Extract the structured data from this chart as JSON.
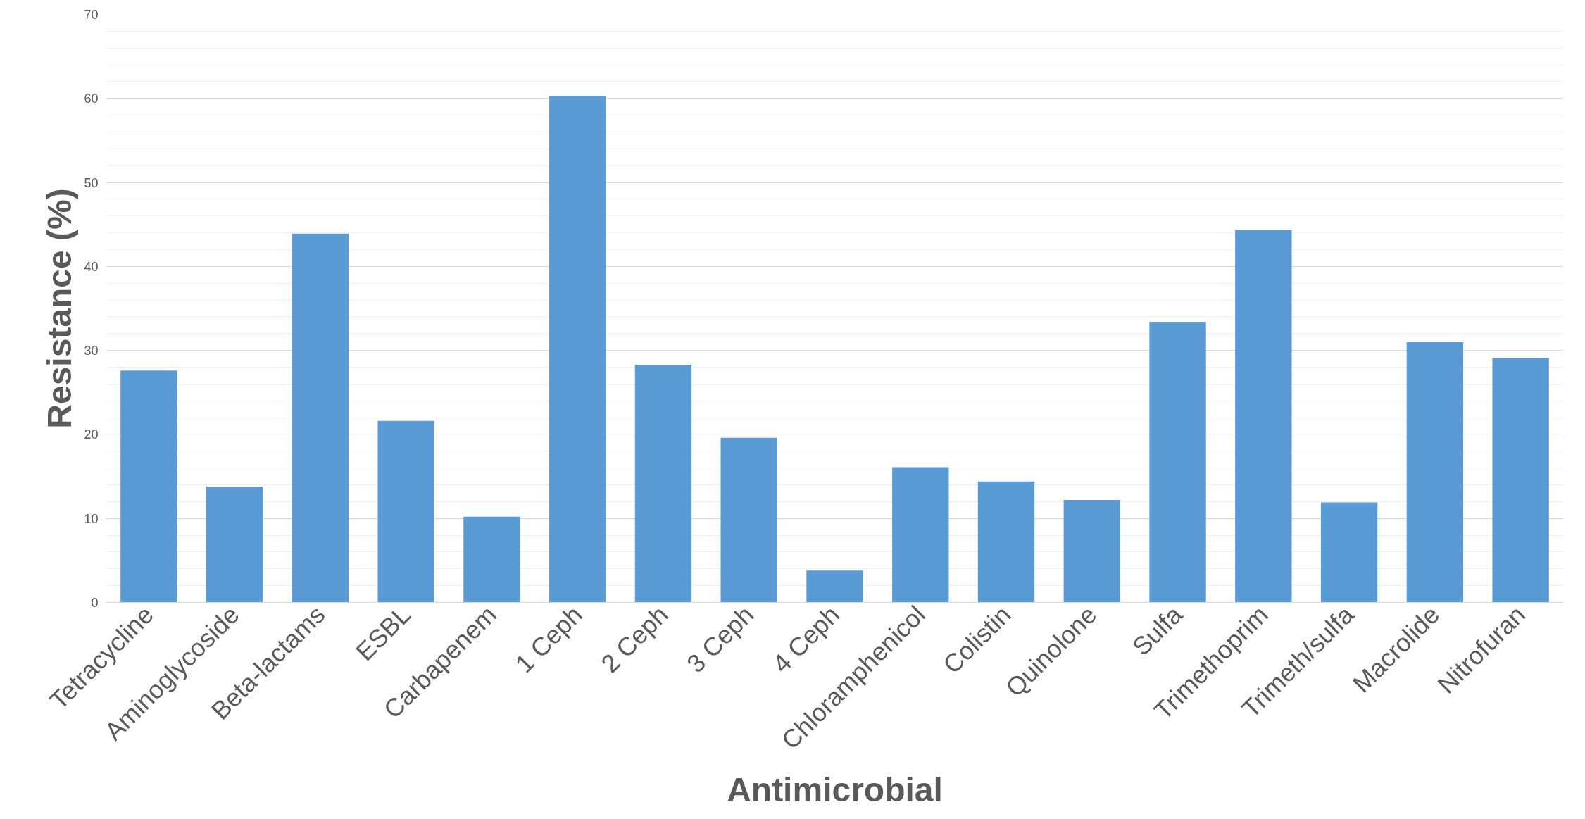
{
  "chart_data": {
    "type": "bar",
    "xlabel": "Antimicrobial",
    "ylabel": "Resistance (%)",
    "categories": [
      "Tetracycline",
      "Aminoglycoside",
      "Beta-lactams",
      "ESBL",
      "Carbapenem",
      "1 Ceph",
      "2 Ceph",
      "3 Ceph",
      "4 Ceph",
      "Chloramphenicol",
      "Colistin",
      "Quinolone",
      "Sulfa",
      "Trimethoprim",
      "Trimeth/sulfa",
      "Macrolide",
      "Nitrofuran"
    ],
    "values": [
      27.6,
      13.8,
      43.9,
      21.6,
      10.2,
      60.3,
      28.3,
      19.6,
      3.8,
      16.1,
      14.4,
      12.2,
      33.4,
      44.3,
      11.9,
      31.0,
      29.1
    ],
    "color": "#5b9bd5",
    "ylim": [
      0,
      70
    ],
    "yticks": [
      0,
      10,
      20,
      30,
      40,
      50,
      60,
      70
    ],
    "grid": "y"
  }
}
